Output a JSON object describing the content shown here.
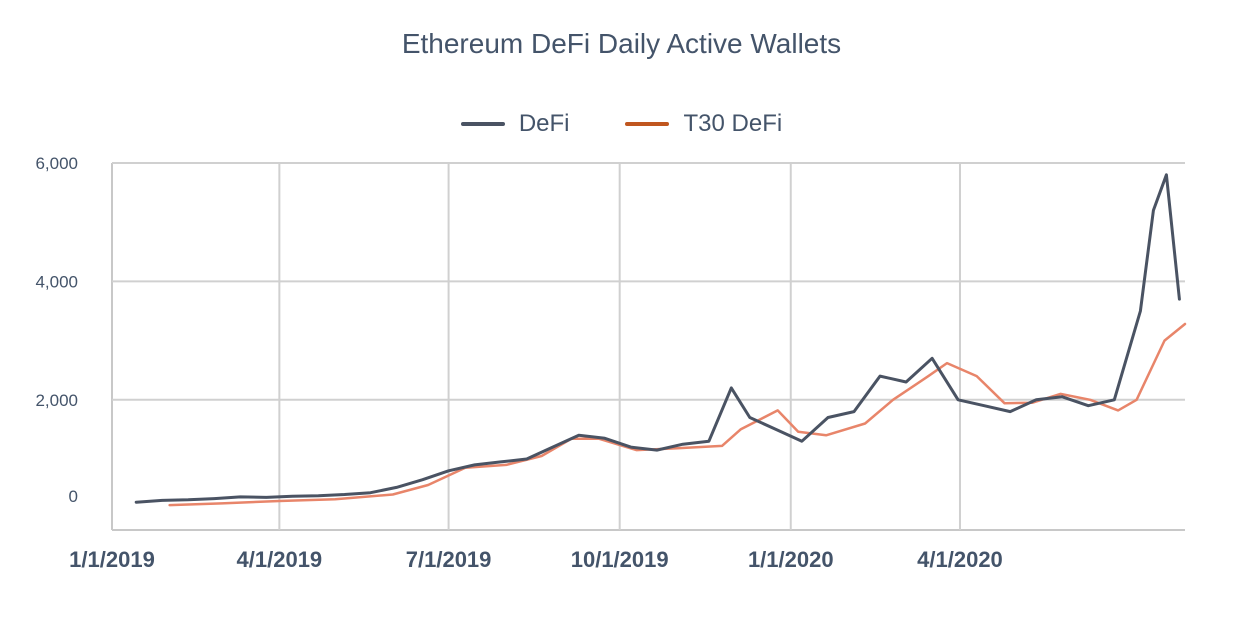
{
  "chart_data": {
    "type": "line",
    "title": "Ethereum DeFi Daily Active Wallets",
    "xlabel": "",
    "ylabel": "",
    "x_ticks": [
      "1/1/2019",
      "4/1/2019",
      "7/1/2019",
      "10/1/2019",
      "1/1/2020",
      "4/1/2020"
    ],
    "y_ticks": [
      "0",
      "2,000",
      "4,000",
      "6,000"
    ],
    "ylim": [
      -200,
      6000
    ],
    "grid": true,
    "legend_position": "top",
    "series": [
      {
        "name": "DeFi",
        "color": "#4a5363",
        "points": [
          [
            "2019-01-14",
            270
          ],
          [
            "2019-01-28",
            300
          ],
          [
            "2019-02-11",
            310
          ],
          [
            "2019-02-25",
            330
          ],
          [
            "2019-03-11",
            360
          ],
          [
            "2019-03-25",
            350
          ],
          [
            "2019-04-08",
            370
          ],
          [
            "2019-04-22",
            380
          ],
          [
            "2019-05-06",
            400
          ],
          [
            "2019-05-20",
            430
          ],
          [
            "2019-06-03",
            520
          ],
          [
            "2019-06-17",
            650
          ],
          [
            "2019-07-01",
            800
          ],
          [
            "2019-07-15",
            900
          ],
          [
            "2019-07-29",
            950
          ],
          [
            "2019-08-12",
            1000
          ],
          [
            "2019-08-26",
            1200
          ],
          [
            "2019-09-09",
            1400
          ],
          [
            "2019-09-23",
            1350
          ],
          [
            "2019-10-07",
            1200
          ],
          [
            "2019-10-21",
            1150
          ],
          [
            "2019-11-04",
            1250
          ],
          [
            "2019-11-18",
            1300
          ],
          [
            "2019-11-30",
            2200
          ],
          [
            "2019-12-10",
            1700
          ],
          [
            "2019-12-24",
            1500
          ],
          [
            "2020-01-07",
            1300
          ],
          [
            "2020-01-21",
            1700
          ],
          [
            "2020-02-04",
            1800
          ],
          [
            "2020-02-18",
            2400
          ],
          [
            "2020-03-03",
            2300
          ],
          [
            "2020-03-17",
            2700
          ],
          [
            "2020-03-31",
            2000
          ],
          [
            "2020-04-14",
            1900
          ],
          [
            "2020-04-28",
            1800
          ],
          [
            "2020-05-12",
            2000
          ],
          [
            "2020-05-26",
            2050
          ],
          [
            "2020-06-09",
            1900
          ],
          [
            "2020-06-23",
            2000
          ],
          [
            "2020-07-07",
            3500
          ],
          [
            "2020-07-14",
            5200
          ],
          [
            "2020-07-21",
            5800
          ],
          [
            "2020-07-28",
            3700
          ]
        ]
      },
      {
        "name": "T30 DeFi",
        "color": "#e8856a",
        "points": [
          [
            "2019-02-01",
            220
          ],
          [
            "2019-03-01",
            250
          ],
          [
            "2019-04-01",
            290
          ],
          [
            "2019-05-01",
            320
          ],
          [
            "2019-06-01",
            400
          ],
          [
            "2019-06-20",
            560
          ],
          [
            "2019-07-10",
            850
          ],
          [
            "2019-08-01",
            900
          ],
          [
            "2019-08-20",
            1050
          ],
          [
            "2019-09-05",
            1340
          ],
          [
            "2019-09-20",
            1340
          ],
          [
            "2019-10-10",
            1150
          ],
          [
            "2019-11-01",
            1180
          ],
          [
            "2019-11-25",
            1220
          ],
          [
            "2019-12-05",
            1500
          ],
          [
            "2019-12-25",
            1820
          ],
          [
            "2020-01-05",
            1460
          ],
          [
            "2020-01-20",
            1400
          ],
          [
            "2020-02-10",
            1600
          ],
          [
            "2020-02-25",
            2000
          ],
          [
            "2020-03-15",
            2400
          ],
          [
            "2020-03-25",
            2620
          ],
          [
            "2020-04-10",
            2400
          ],
          [
            "2020-04-25",
            1940
          ],
          [
            "2020-05-10",
            1950
          ],
          [
            "2020-05-25",
            2100
          ],
          [
            "2020-06-10",
            2000
          ],
          [
            "2020-06-25",
            1820
          ],
          [
            "2020-07-05",
            2000
          ],
          [
            "2020-07-20",
            3000
          ],
          [
            "2020-07-31",
            3280
          ]
        ]
      }
    ]
  }
}
